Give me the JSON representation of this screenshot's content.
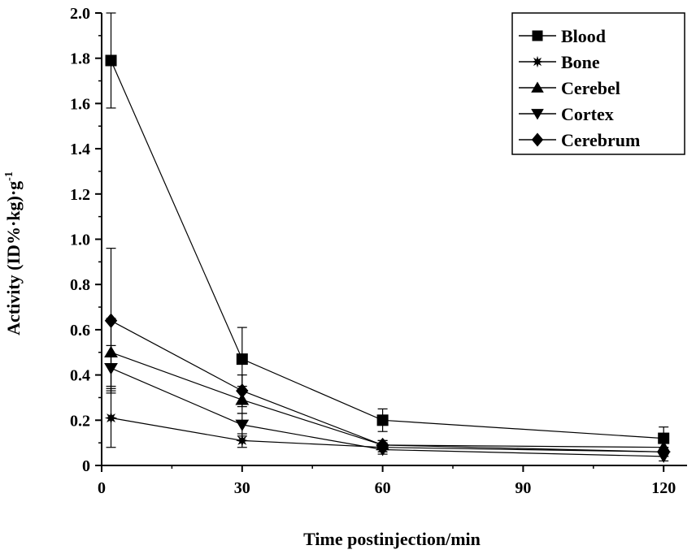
{
  "chart_data": {
    "type": "line",
    "xlabel": "Time postinjection/min",
    "ylabel": "Activity (ID%·kg)·g",
    "ylabel_superscript": "-1",
    "xlim": [
      0,
      125
    ],
    "ylim": [
      0,
      2.0
    ],
    "x_ticks": [
      "0",
      "30",
      "60",
      "90",
      "120"
    ],
    "y_ticks": [
      "0",
      "0.2",
      "0.4",
      "0.6",
      "0.8",
      "1.0",
      "1.2",
      "1.4",
      "1.6",
      "1.8",
      "2.0"
    ],
    "grid": false,
    "legend_position": "top-right",
    "series": [
      {
        "name": "Blood",
        "marker": "square",
        "x": [
          2,
          30,
          60,
          120
        ],
        "y": [
          1.79,
          0.47,
          0.2,
          0.12
        ],
        "err": [
          0.21,
          0.14,
          0.05,
          0.05
        ]
      },
      {
        "name": "Bone",
        "marker": "star",
        "x": [
          2,
          30,
          60,
          120
        ],
        "y": [
          0.21,
          0.11,
          0.08,
          0.06
        ],
        "err": [
          0.13,
          0.03,
          0.02,
          0.02
        ]
      },
      {
        "name": "Cerebel",
        "marker": "triangle-up",
        "x": [
          2,
          30,
          60,
          120
        ],
        "y": [
          0.5,
          0.29,
          0.09,
          0.08
        ],
        "err": [
          0.15,
          0.06,
          0.02,
          0.02
        ]
      },
      {
        "name": "Cortex",
        "marker": "triangle-down",
        "x": [
          2,
          30,
          60,
          120
        ],
        "y": [
          0.43,
          0.18,
          0.07,
          0.04
        ],
        "err": [
          0.1,
          0.05,
          0.02,
          0.02
        ]
      },
      {
        "name": "Cerebrum",
        "marker": "diamond",
        "x": [
          2,
          30,
          60,
          120
        ],
        "y": [
          0.64,
          0.33,
          0.09,
          0.06
        ],
        "err": [
          0.32,
          0.07,
          0.02,
          0.02
        ]
      }
    ]
  }
}
